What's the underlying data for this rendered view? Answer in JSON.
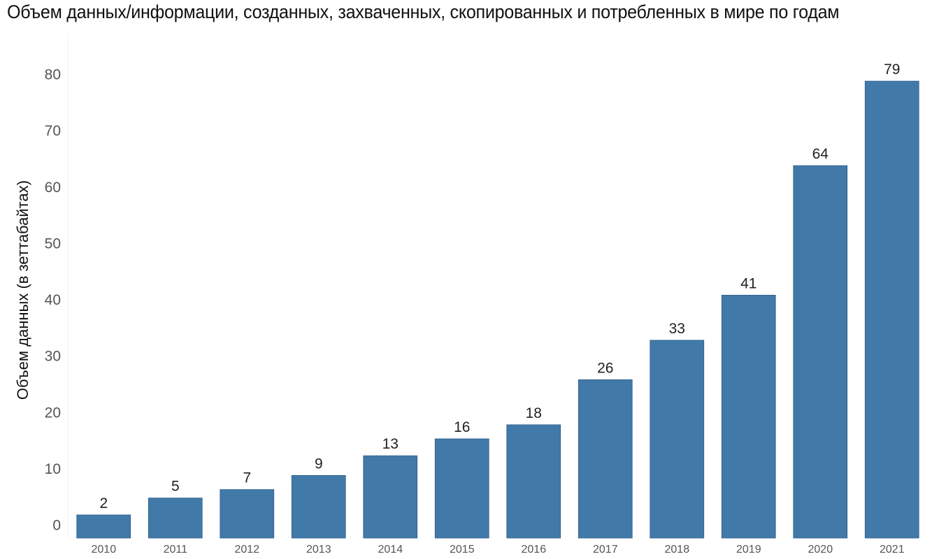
{
  "chart_data": {
    "type": "bar",
    "title": "Объем данных/информации, созданных, захваченных, скопированных и потребленных в мире по годам",
    "xlabel": "",
    "ylabel": "Объем данных (в зеттабайтах)",
    "categories": [
      "2010",
      "2011",
      "2012",
      "2013",
      "2014",
      "2015",
      "2016",
      "2017",
      "2018",
      "2019",
      "2020",
      "2021"
    ],
    "values": [
      2,
      5,
      6.5,
      9,
      12.5,
      15.5,
      18,
      26,
      33,
      41,
      64,
      79
    ],
    "data_labels": [
      "2",
      "5",
      "7",
      "9",
      "13",
      "16",
      "18",
      "26",
      "33",
      "41",
      "64",
      "79"
    ],
    "yticks": [
      0,
      10,
      20,
      30,
      40,
      50,
      60,
      70,
      80
    ],
    "ylim": [
      0,
      85
    ],
    "grid": false,
    "legend": "none",
    "bar_color": "#4179a9"
  }
}
